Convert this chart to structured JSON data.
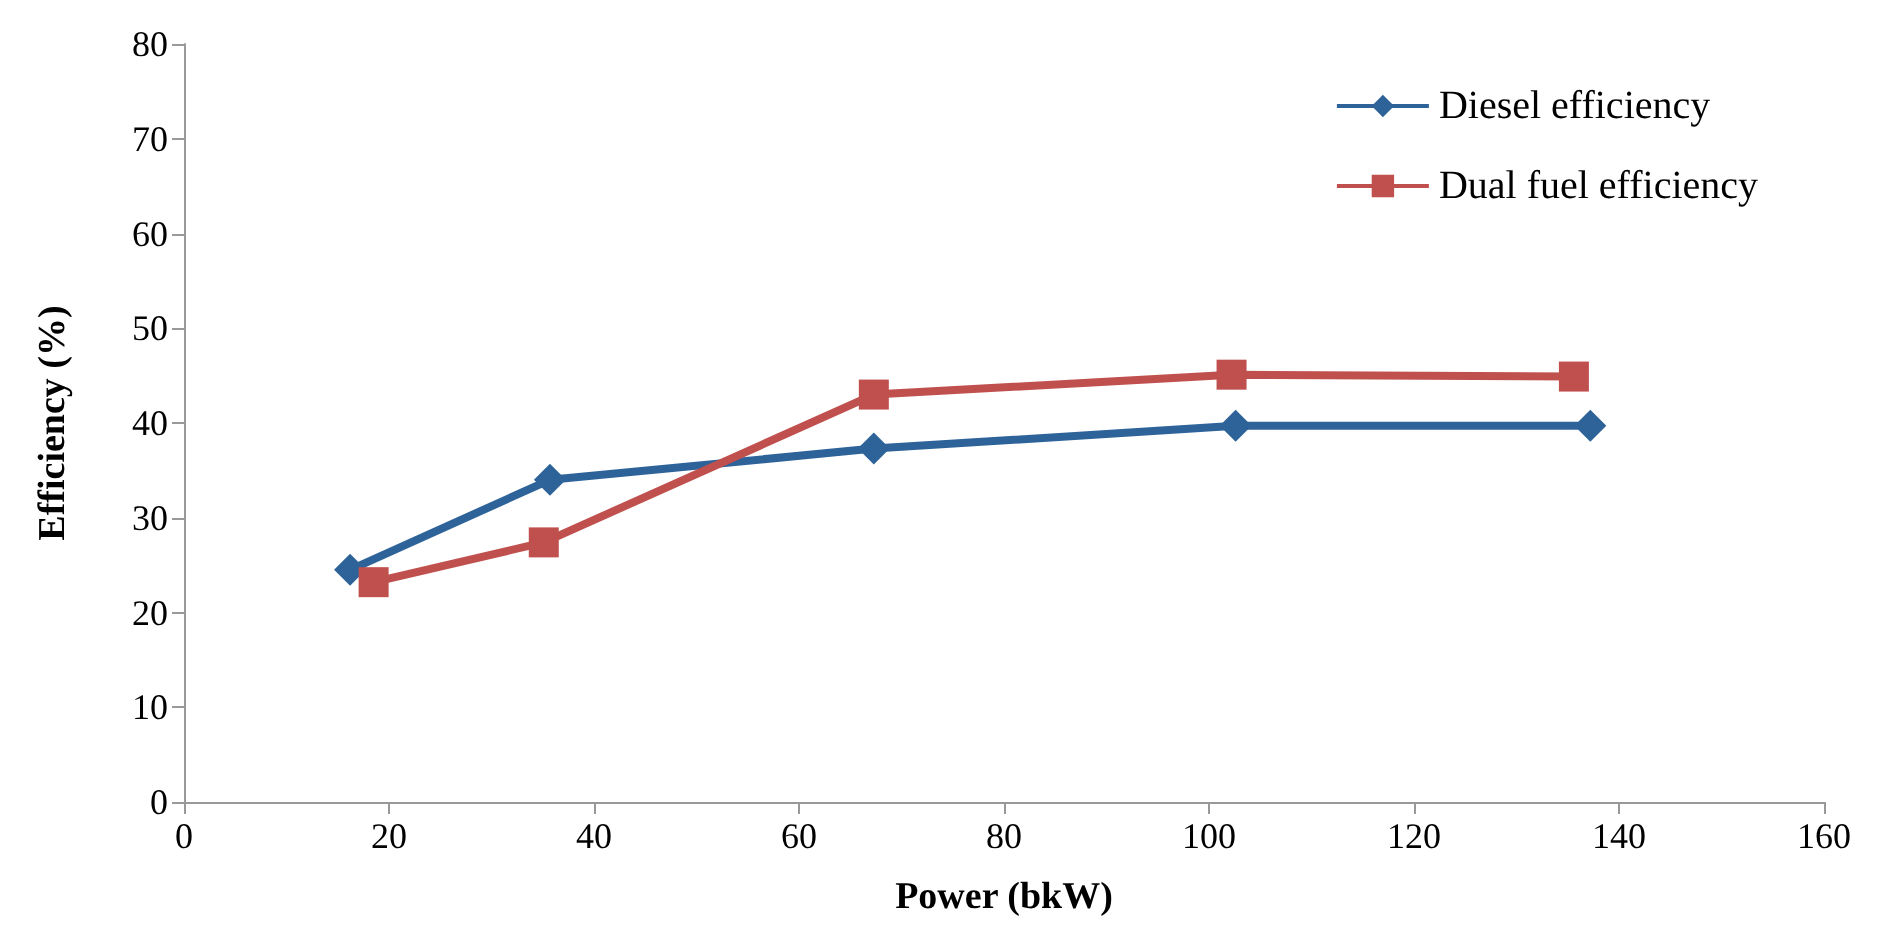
{
  "chart_data": {
    "type": "line",
    "xlabel": "Power (bkW)",
    "ylabel": "Efficiency (%)",
    "xlim": [
      0,
      160
    ],
    "xticks": [
      0,
      20,
      40,
      60,
      80,
      100,
      120,
      140,
      160
    ],
    "ylim": [
      0,
      80
    ],
    "yticks": [
      0,
      10,
      20,
      30,
      40,
      50,
      60,
      70,
      80
    ],
    "grid": false,
    "legend": "top right",
    "line_style": "solid",
    "series": [
      {
        "name": "Diesel efficiency",
        "color": "#2e6399",
        "marker": "diamond",
        "x": [
          16.2,
          35.7,
          67.3,
          102.6,
          137.2
        ],
        "values": [
          24.5,
          34,
          37.3,
          39.7,
          39.7
        ]
      },
      {
        "name": "Dual fuel efficiency",
        "color": "#c0504d",
        "marker": "square",
        "x": [
          18.5,
          35.1,
          67.3,
          102.2,
          135.6
        ],
        "values": [
          23.2,
          27.4,
          43,
          45.1,
          44.9
        ]
      }
    ]
  }
}
